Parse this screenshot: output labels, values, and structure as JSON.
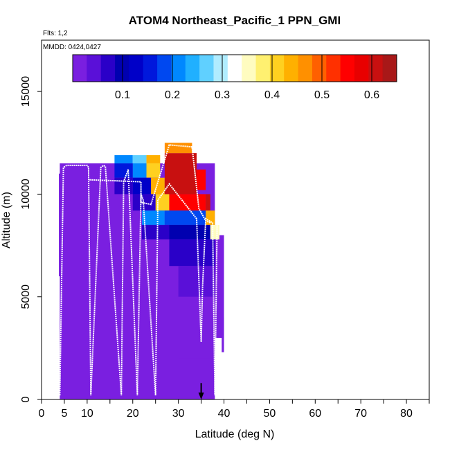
{
  "chart_data": {
    "type": "heatmap",
    "title": "ATOM4 Northeast_Pacific_1 PPN_GMI",
    "flights_label": "Flts: 1,2",
    "dates_label": "MMDD: 0424,0427",
    "xlabel": "Latitude (deg N)",
    "ylabel": "Altitude (m)",
    "xlim": [
      0,
      85
    ],
    "ylim": [
      0,
      17500
    ],
    "x_ticks": [
      {
        "value": 0,
        "label": "0"
      },
      {
        "value": 5,
        "label": "5"
      },
      {
        "value": 10,
        "label": "10"
      },
      {
        "value": 20,
        "label": "20"
      },
      {
        "value": 30,
        "label": "30"
      },
      {
        "value": 40,
        "label": "40"
      },
      {
        "value": 50,
        "label": "50"
      },
      {
        "value": 60,
        "label": "60"
      },
      {
        "value": 70,
        "label": "70"
      },
      {
        "value": 80,
        "label": "80"
      }
    ],
    "x_minor_ticks": [
      15,
      25,
      35,
      45,
      55,
      65,
      75,
      85
    ],
    "y_ticks": [
      {
        "value": 0,
        "label": "0"
      },
      {
        "value": 5000,
        "label": "5000"
      },
      {
        "value": 10000,
        "label": "10000"
      },
      {
        "value": 15000,
        "label": "15000"
      }
    ],
    "colorbar": {
      "range": [
        0,
        0.65
      ],
      "ticks": [
        {
          "value": 0.1,
          "label": "0.1"
        },
        {
          "value": 0.2,
          "label": "0.2"
        },
        {
          "value": 0.3,
          "label": "0.3"
        },
        {
          "value": 0.4,
          "label": "0.4"
        },
        {
          "value": 0.5,
          "label": "0.5"
        },
        {
          "value": 0.6,
          "label": "0.6"
        }
      ],
      "colors": [
        "#7a1fe0",
        "#5a10d8",
        "#2a00c8",
        "#0000b0",
        "#0000c8",
        "#0018dc",
        "#0048f0",
        "#0088ff",
        "#20b0ff",
        "#60d0ff",
        "#b0ecff",
        "#ffffff",
        "#fffcc0",
        "#fff070",
        "#ffd020",
        "#ffb000",
        "#ff9000",
        "#ff6000",
        "#ff3000",
        "#ff0000",
        "#e80000",
        "#c81010",
        "#a81818"
      ]
    },
    "cells": [
      {
        "x0": 4,
        "x1": 38,
        "y0": 0,
        "y1": 11500,
        "v": 0.0
      },
      {
        "x0": 3.8,
        "x1": 4.2,
        "y0": 6000,
        "y1": 11000,
        "v": 0.0
      },
      {
        "x0": 4.3,
        "x1": 4.8,
        "y0": 8500,
        "y1": 10500,
        "v": 0.0
      },
      {
        "x0": 38,
        "x1": 40,
        "y0": 3000,
        "y1": 8000,
        "v": 0.0
      },
      {
        "x0": 39.5,
        "x1": 40,
        "y0": 2300,
        "y1": 4000,
        "v": 0.0
      },
      {
        "x0": 16,
        "x1": 20,
        "y0": 10800,
        "y1": 11500,
        "v": 0.15
      },
      {
        "x0": 16,
        "x1": 20,
        "y0": 11500,
        "y1": 11900,
        "v": 0.22
      },
      {
        "x0": 20,
        "x1": 23,
        "y0": 11500,
        "y1": 11900,
        "v": 0.28
      },
      {
        "x0": 23,
        "x1": 26,
        "y0": 11500,
        "y1": 11900,
        "v": 0.45
      },
      {
        "x0": 20,
        "x1": 23,
        "y0": 10800,
        "y1": 11500,
        "v": 0.22
      },
      {
        "x0": 23,
        "x1": 26,
        "y0": 10800,
        "y1": 11500,
        "v": 0.4
      },
      {
        "x0": 16,
        "x1": 20,
        "y0": 10000,
        "y1": 10800,
        "v": 0.06
      },
      {
        "x0": 20,
        "x1": 24,
        "y0": 10000,
        "y1": 10800,
        "v": 0.12
      },
      {
        "x0": 24,
        "x1": 27,
        "y0": 10000,
        "y1": 10800,
        "v": 0.45
      },
      {
        "x0": 27,
        "x1": 34,
        "y0": 10000,
        "y1": 12000,
        "v": 0.6
      },
      {
        "x0": 27,
        "x1": 33,
        "y0": 12000,
        "y1": 12500,
        "v": 0.48
      },
      {
        "x0": 34,
        "x1": 36,
        "y0": 10200,
        "y1": 11200,
        "v": 0.55
      },
      {
        "x0": 20,
        "x1": 25,
        "y0": 9200,
        "y1": 10000,
        "v": 0.06
      },
      {
        "x0": 25,
        "x1": 28,
        "y0": 9200,
        "y1": 10000,
        "v": 0.4
      },
      {
        "x0": 28,
        "x1": 36,
        "y0": 9200,
        "y1": 10000,
        "v": 0.55
      },
      {
        "x0": 36,
        "x1": 37,
        "y0": 9200,
        "y1": 10000,
        "v": 0.6
      },
      {
        "x0": 22,
        "x1": 27,
        "y0": 8500,
        "y1": 9200,
        "v": 0.2
      },
      {
        "x0": 27,
        "x1": 36,
        "y0": 8500,
        "y1": 9200,
        "v": 0.18
      },
      {
        "x0": 36,
        "x1": 38,
        "y0": 8500,
        "y1": 9200,
        "v": 0.45
      },
      {
        "x0": 22,
        "x1": 28,
        "y0": 7800,
        "y1": 8500,
        "v": 0.07
      },
      {
        "x0": 28,
        "x1": 37,
        "y0": 7800,
        "y1": 8500,
        "v": 0.09
      },
      {
        "x0": 37,
        "x1": 39,
        "y0": 7800,
        "y1": 8500,
        "v": 0.35
      },
      {
        "x0": 28,
        "x1": 38,
        "y0": 6500,
        "y1": 7800,
        "v": 0.07
      },
      {
        "x0": 30,
        "x1": 38,
        "y0": 5000,
        "y1": 6500,
        "v": 0.04
      },
      {
        "x0": 30,
        "x1": 38,
        "y0": 2000,
        "y1": 5000,
        "v": 0.02
      }
    ],
    "series": [
      {
        "name": "flight-track",
        "color": "#ffffff",
        "x": [
          4.0,
          4.8,
          5.5,
          10.0,
          10.3,
          10.8,
          13.0,
          13.6,
          14.0,
          17.5,
          18.0,
          19.0,
          21.0,
          21.8,
          22.3,
          25.0,
          25.5,
          28.0,
          34.0,
          35.0,
          35.3,
          36.0,
          37.5,
          38.0,
          38.5
        ],
        "y": [
          200,
          11300,
          11400,
          11400,
          11300,
          200,
          11300,
          11400,
          11350,
          200,
          10600,
          11200,
          200,
          10000,
          9700,
          200,
          9700,
          10500,
          8800,
          2800,
          5500,
          8800,
          8600,
          200,
          8500
        ]
      },
      {
        "name": "flight-track-upper",
        "color": "#ffffff",
        "x": [
          10.5,
          21.8,
          21.8,
          24.0,
          28.0,
          33.0,
          34.5,
          36.0,
          37.0
        ],
        "y": [
          10700,
          10600,
          9600,
          9500,
          12400,
          12300,
          9300,
          8700,
          8600
        ]
      }
    ],
    "marker": {
      "type": "arrow",
      "x": 35,
      "y_top": 800,
      "y_bottom": 0
    }
  }
}
